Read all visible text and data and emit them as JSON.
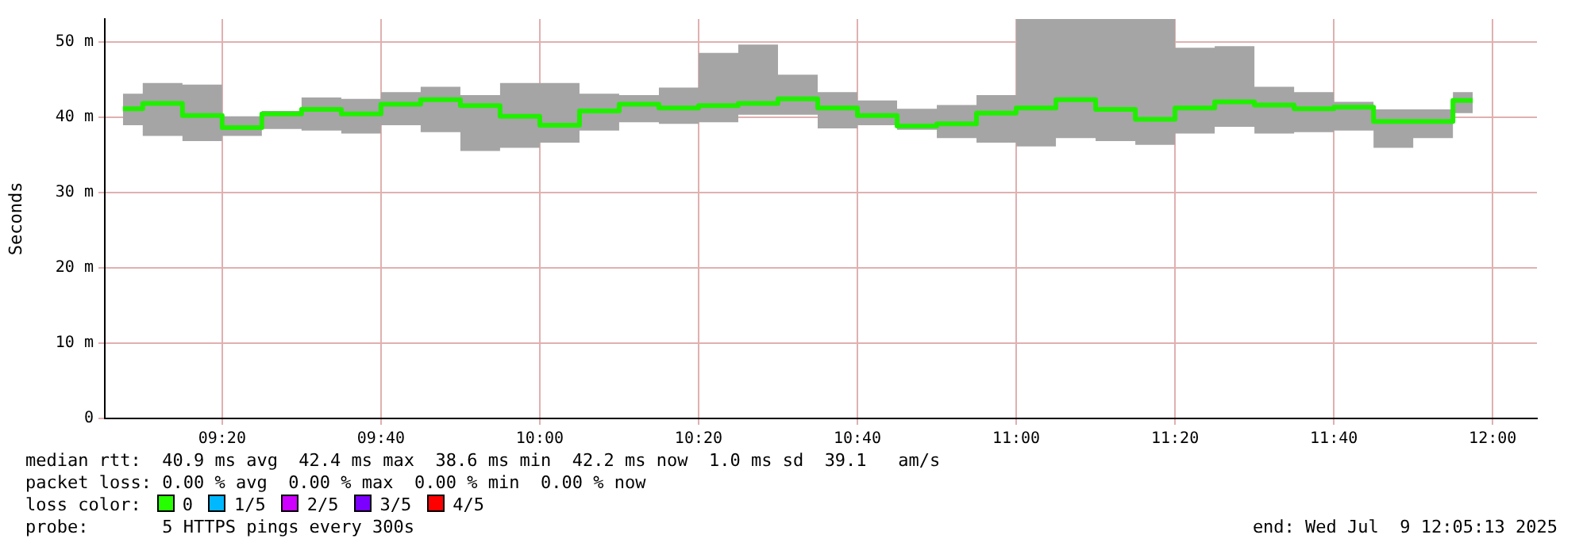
{
  "chart_data": {
    "type": "step",
    "ylabel": "Seconds",
    "x": [
      9.125,
      9.2083,
      9.2917,
      9.375,
      9.4583,
      9.5417,
      9.625,
      9.7083,
      9.7917,
      9.875,
      9.9583,
      10.0417,
      10.125,
      10.2083,
      10.2917,
      10.375,
      10.4583,
      10.5417,
      10.625,
      10.7083,
      10.7917,
      10.875,
      10.9583,
      11.0417,
      11.125,
      11.2083,
      11.2917,
      11.375,
      11.4583,
      11.5417,
      11.625,
      11.7083,
      11.7917,
      11.875,
      11.9583
    ],
    "series": [
      {
        "color": "#20f000",
        "values": [
          41.1,
          41.8,
          40.2,
          38.6,
          40.4,
          41.0,
          40.4,
          41.7,
          42.3,
          41.5,
          40.1,
          38.9,
          40.8,
          41.7,
          41.2,
          41.5,
          41.8,
          42.4,
          41.2,
          40.2,
          38.8,
          39.1,
          40.5,
          41.2,
          42.3,
          41.0,
          39.7,
          41.2,
          42.0,
          41.6,
          41.1,
          41.3,
          39.4,
          39.4,
          42.2
        ],
        "lower": [
          38.9,
          37.5,
          36.8,
          37.5,
          38.4,
          38.2,
          37.8,
          38.9,
          38.0,
          35.5,
          35.9,
          36.6,
          38.2,
          39.3,
          39.1,
          39.3,
          40.3,
          40.3,
          38.5,
          38.9,
          38.3,
          37.2,
          36.6,
          36.1,
          37.2,
          36.8,
          36.3,
          37.8,
          38.7,
          37.8,
          38.0,
          38.2,
          35.9,
          37.2,
          40.5
        ],
        "upper": [
          43.1,
          44.5,
          44.3,
          40.1,
          40.8,
          42.6,
          42.4,
          43.3,
          44.0,
          42.9,
          44.5,
          44.5,
          43.1,
          42.9,
          43.9,
          48.5,
          49.6,
          45.6,
          43.3,
          42.2,
          41.1,
          41.6,
          42.9,
          53,
          53,
          53,
          53,
          49.2,
          49.4,
          44.0,
          43.3,
          42.0,
          41.0,
          41.0,
          43.3
        ]
      }
    ],
    "xlim": [
      9.087,
      12.093
    ],
    "xticks": [
      {
        "value": 9.3333,
        "label": "09:20"
      },
      {
        "value": 9.6667,
        "label": "09:40"
      },
      {
        "value": 10,
        "label": "10:00"
      },
      {
        "value": 10.3333,
        "label": "10:20"
      },
      {
        "value": 10.6667,
        "label": "10:40"
      },
      {
        "value": 11,
        "label": "11:00"
      },
      {
        "value": 11.3333,
        "label": "11:20"
      },
      {
        "value": 11.6667,
        "label": "11:40"
      },
      {
        "value": 12,
        "label": "12:00"
      }
    ],
    "ylim": [
      0,
      53
    ],
    "yticks": [
      0,
      {
        "value": 10,
        "label": "10 m"
      },
      {
        "value": 20,
        "label": "20 m"
      },
      {
        "value": 30,
        "label": "30 m"
      },
      {
        "value": 40,
        "label": "40 m"
      },
      {
        "value": 50,
        "label": "50 m"
      }
    ],
    "grid": true,
    "line_style": "solid",
    "annotations": [
      "median rtt:  40.9 ms avg  42.4 ms max  38.6 ms min  42.2 ms now  1.0 ms sd  39.1   am/s",
      "packet loss: 0.00 % avg  0.00 % max  0.00 % min  0.00 % now",
      "loss color:",
      "0",
      "1/5",
      "2/5",
      "3/5",
      "4/5",
      "probe:       5 HTTPS pings every 300s",
      "end: Wed Jul  9 12:05:13 2025"
    ]
  }
}
